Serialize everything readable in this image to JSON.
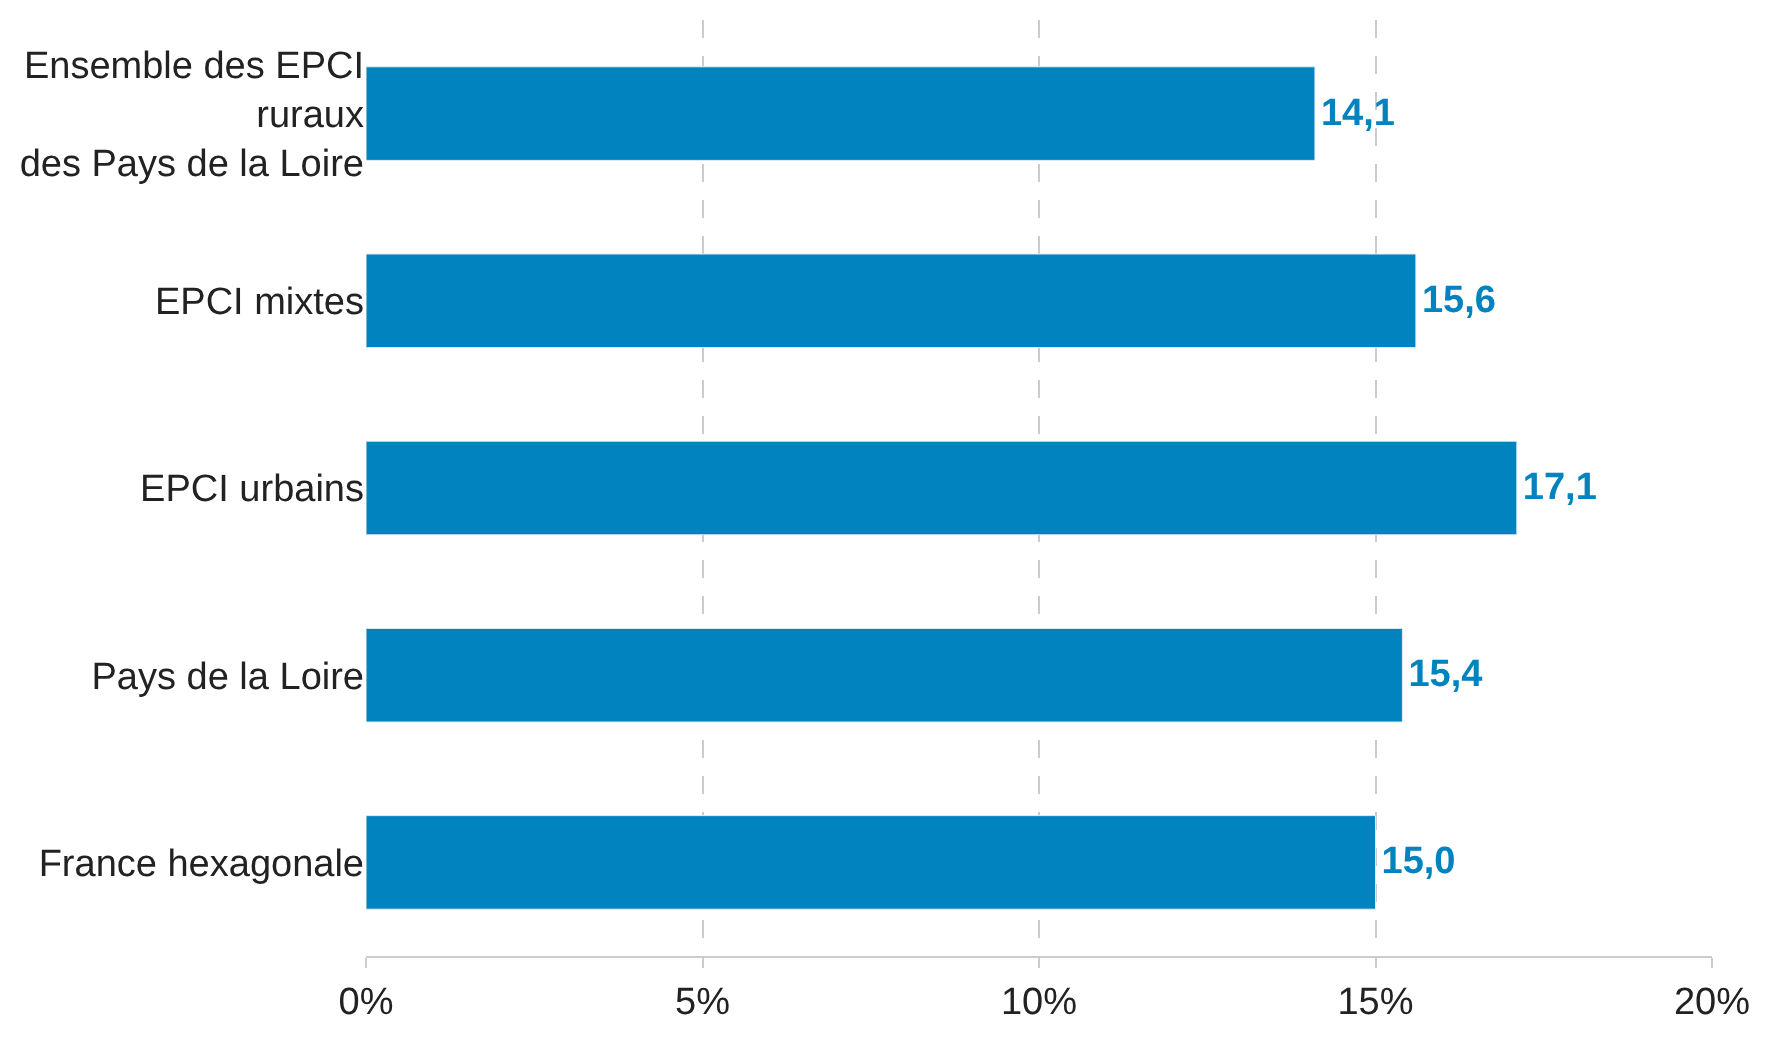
{
  "chart_data": {
    "type": "bar",
    "orientation": "horizontal",
    "categories": [
      "Ensemble des EPCI\nruraux\ndes Pays de la Loire",
      "EPCI mixtes",
      "EPCI urbains",
      "Pays de la Loire",
      "France hexagonale"
    ],
    "values": [
      14.1,
      15.6,
      17.1,
      15.4,
      15.0
    ],
    "value_labels": [
      "14,1",
      "15,6",
      "17,1",
      "15,4",
      "15,0"
    ],
    "color": "#0083be",
    "xlim": [
      0,
      20
    ],
    "xticks": [
      {
        "value": 0,
        "label": "0%"
      },
      {
        "value": 5,
        "label": "5%"
      },
      {
        "value": 10,
        "label": "10%"
      },
      {
        "value": 15,
        "label": "15%"
      },
      {
        "value": 20,
        "label": "20%"
      }
    ],
    "grid": "x"
  }
}
